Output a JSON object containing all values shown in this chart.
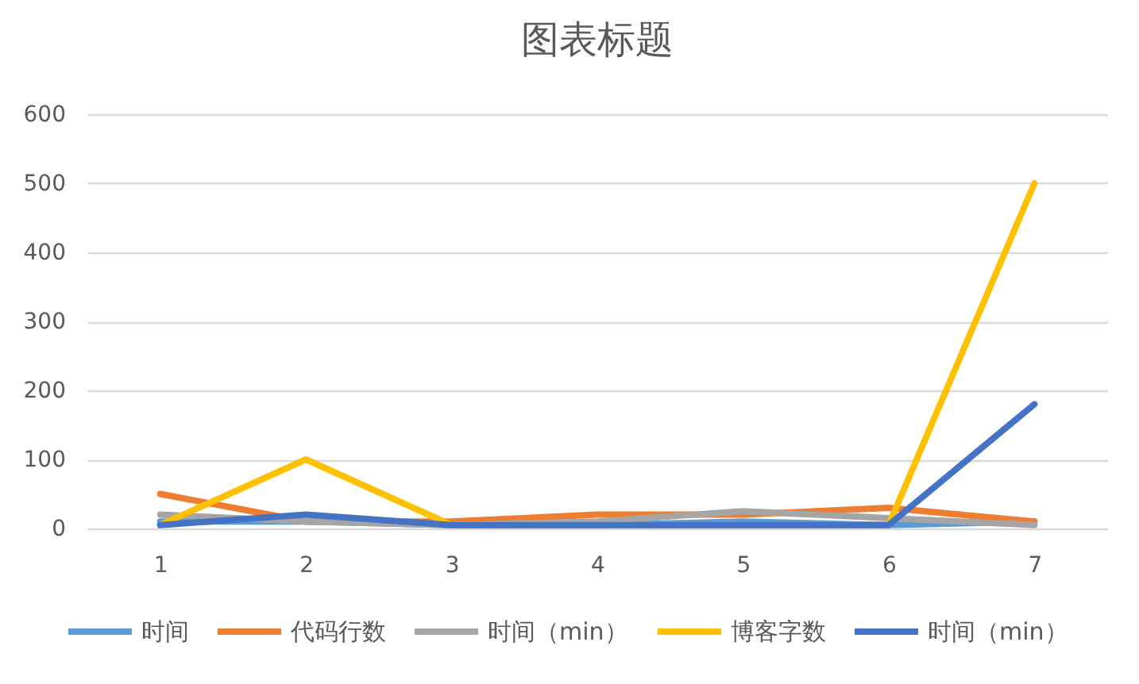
{
  "chart_data": {
    "type": "line",
    "title": "图表标题",
    "categories": [
      "1",
      "2",
      "3",
      "4",
      "5",
      "6",
      "7"
    ],
    "series": [
      {
        "name": "时间",
        "color": "#5b9bd5",
        "values": [
          10,
          10,
          5,
          5,
          10,
          5,
          10
        ]
      },
      {
        "name": "代码行数",
        "color": "#ed7d31",
        "values": [
          50,
          10,
          10,
          20,
          20,
          30,
          10
        ]
      },
      {
        "name": "时间（min）",
        "color": "#a5a5a5",
        "values": [
          20,
          10,
          5,
          10,
          25,
          15,
          5
        ]
      },
      {
        "name": "博客字数",
        "color": "#ffc000",
        "values": [
          5,
          100,
          5,
          5,
          5,
          5,
          500
        ]
      },
      {
        "name": "时间（min）",
        "color": "#4472c4",
        "values": [
          5,
          20,
          5,
          5,
          5,
          5,
          180
        ]
      }
    ],
    "ylim": [
      0,
      600
    ],
    "yticks": [
      0,
      100,
      200,
      300,
      400,
      500,
      600
    ],
    "grid": "y",
    "legend": "bottom",
    "line_style": "solid"
  }
}
